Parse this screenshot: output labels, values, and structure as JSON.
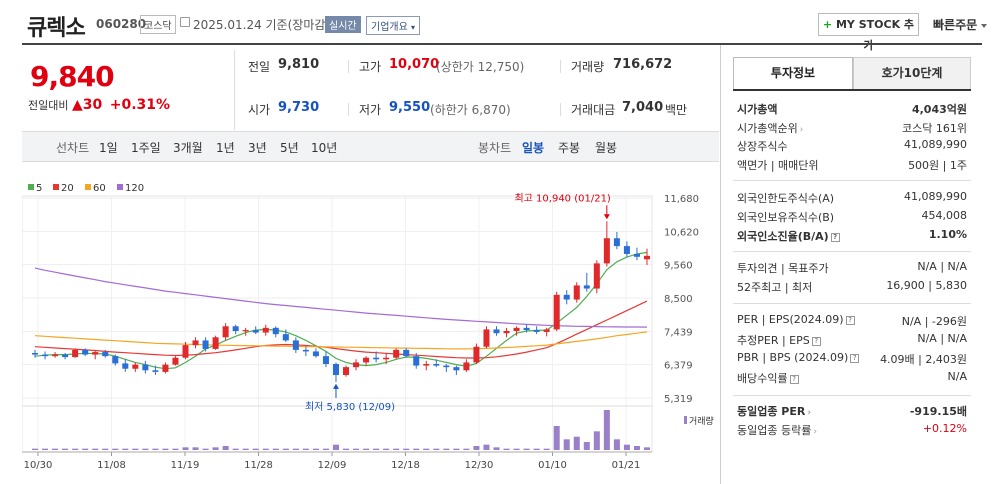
{
  "header": {
    "name": "큐렉소",
    "code": "060280",
    "market": "코스닥",
    "date": "2025.01.24 기준(장마감)",
    "realtime_btn": "실시간",
    "company_info_btn": "기업개요",
    "mystock_plus": "+",
    "mystock_btn": "MY STOCK 추가",
    "quick_order": "빠른주문"
  },
  "price": {
    "current": "9,840",
    "change_label": "전일대비",
    "change_arrow": "▲",
    "change_value": "30",
    "change_pct": "+0.31%"
  },
  "stats": {
    "prev_close_label": "전일",
    "prev_close": "9,810",
    "high_label": "고가",
    "high": "10,070",
    "upper_limit": "(상한가 12,750)",
    "volume_label": "거래량",
    "volume": "716,672",
    "open_label": "시가",
    "open": "9,730",
    "low_label": "저가",
    "low": "9,550",
    "lower_limit": "(하한가 6,870)",
    "amount_label": "거래대금",
    "amount": "7,040",
    "amount_unit": "백만"
  },
  "tabs": {
    "line_label": "선차트",
    "line_items": [
      "1일",
      "1주일",
      "3개월",
      "1년",
      "3년",
      "5년",
      "10년"
    ],
    "candle_label": "봉차트",
    "candle_items": [
      "일봉",
      "주봉",
      "월봉"
    ],
    "active_candle": "일봉"
  },
  "chart_data": {
    "type": "candlestick",
    "legend": [
      {
        "name": "5",
        "color": "#4caf50"
      },
      {
        "name": "20",
        "color": "#e53935"
      },
      {
        "name": "60",
        "color": "#f5a623"
      },
      {
        "name": "120",
        "color": "#a36bd6"
      }
    ],
    "y_ticks": [
      "11,680",
      "10,620",
      "9,560",
      "8,500",
      "7,439",
      "6,379",
      "5,319"
    ],
    "x_ticks": [
      "10/30",
      "11/08",
      "11/19",
      "11/28",
      "12/09",
      "12/18",
      "12/30",
      "01/10",
      "01/21"
    ],
    "volume_label": "거래량",
    "high_annotation": "최고 10,940 (01/21)",
    "low_annotation": "최저 5,830 (12/09)",
    "candles": [
      [
        6750,
        6850,
        6600,
        6700
      ],
      [
        6700,
        6800,
        6550,
        6650
      ],
      [
        6650,
        6780,
        6600,
        6700
      ],
      [
        6700,
        6750,
        6550,
        6620
      ],
      [
        6620,
        6900,
        6600,
        6850
      ],
      [
        6850,
        6900,
        6650,
        6700
      ],
      [
        6700,
        6820,
        6550,
        6780
      ],
      [
        6780,
        6850,
        6600,
        6650
      ],
      [
        6650,
        6700,
        6350,
        6420
      ],
      [
        6420,
        6550,
        6150,
        6250
      ],
      [
        6250,
        6450,
        6150,
        6380
      ],
      [
        6380,
        6500,
        6100,
        6200
      ],
      [
        6200,
        6350,
        6050,
        6150
      ],
      [
        6150,
        6450,
        6100,
        6380
      ],
      [
        6380,
        6650,
        6350,
        6600
      ],
      [
        6600,
        7100,
        6550,
        7000
      ],
      [
        7000,
        7250,
        6900,
        7150
      ],
      [
        7150,
        7250,
        6800,
        6880
      ],
      [
        6880,
        7300,
        6850,
        7250
      ],
      [
        7250,
        7700,
        7150,
        7600
      ],
      [
        7600,
        7650,
        7350,
        7450
      ],
      [
        7450,
        7550,
        7300,
        7480
      ],
      [
        7480,
        7600,
        7350,
        7400
      ],
      [
        7400,
        7650,
        7300,
        7550
      ],
      [
        7550,
        7600,
        7250,
        7350
      ],
      [
        7350,
        7500,
        7100,
        7150
      ],
      [
        7150,
        7250,
        6750,
        6850
      ],
      [
        6850,
        6950,
        6650,
        6800
      ],
      [
        6800,
        6900,
        6600,
        6650
      ],
      [
        6650,
        6800,
        6300,
        6400
      ],
      [
        6400,
        6450,
        5830,
        6050
      ],
      [
        6050,
        6350,
        6000,
        6300
      ],
      [
        6300,
        6550,
        6200,
        6450
      ],
      [
        6450,
        6650,
        6350,
        6600
      ],
      [
        6600,
        6800,
        6450,
        6550
      ],
      [
        6550,
        6750,
        6400,
        6600
      ],
      [
        6600,
        6900,
        6550,
        6850
      ],
      [
        6850,
        6900,
        6600,
        6650
      ],
      [
        6650,
        6750,
        6250,
        6350
      ],
      [
        6350,
        6500,
        6200,
        6400
      ],
      [
        6400,
        6550,
        6300,
        6350
      ],
      [
        6350,
        6400,
        6150,
        6300
      ],
      [
        6300,
        6350,
        6050,
        6200
      ],
      [
        6200,
        6550,
        6150,
        6450
      ],
      [
        6450,
        7050,
        6400,
        6950
      ],
      [
        6950,
        7600,
        6900,
        7500
      ],
      [
        7500,
        7600,
        7300,
        7380
      ],
      [
        7380,
        7550,
        7250,
        7450
      ],
      [
        7450,
        7600,
        7300,
        7550
      ],
      [
        7550,
        7650,
        7400,
        7480
      ],
      [
        7480,
        7600,
        7350,
        7420
      ],
      [
        7420,
        7550,
        7280,
        7500
      ],
      [
        7500,
        8700,
        7450,
        8600
      ],
      [
        8600,
        8750,
        8300,
        8450
      ],
      [
        8450,
        9000,
        8350,
        8900
      ],
      [
        8900,
        9300,
        8700,
        8800
      ],
      [
        8800,
        9700,
        8650,
        9600
      ],
      [
        9600,
        10940,
        9500,
        10400
      ],
      [
        10400,
        10600,
        10050,
        10150
      ],
      [
        10150,
        10300,
        9800,
        9900
      ],
      [
        9900,
        10100,
        9700,
        9810
      ],
      [
        9730,
        10070,
        9550,
        9840
      ]
    ],
    "volumes": [
      1,
      1,
      1,
      1,
      1,
      1,
      1,
      1,
      1,
      1,
      1,
      1,
      1,
      1,
      1,
      2,
      2,
      1,
      2,
      3,
      1,
      1,
      1,
      1,
      1,
      1,
      1,
      1,
      1,
      1,
      4,
      1,
      1,
      1,
      1,
      1,
      1,
      1,
      1,
      1,
      1,
      1,
      1,
      1,
      3,
      4,
      2,
      1,
      1,
      1,
      1,
      1,
      18,
      8,
      10,
      6,
      14,
      30,
      8,
      4,
      3,
      2
    ],
    "ma5": [
      6650,
      6680,
      6700,
      6700,
      6720,
      6740,
      6730,
      6720,
      6650,
      6550,
      6450,
      6380,
      6300,
      6250,
      6280,
      6450,
      6650,
      6880,
      7000,
      7150,
      7280,
      7400,
      7480,
      7500,
      7480,
      7420,
      7300,
      7150,
      6980,
      6800,
      6580,
      6450,
      6380,
      6350,
      6380,
      6450,
      6550,
      6620,
      6620,
      6580,
      6520,
      6450,
      6380,
      6330,
      6420,
      6650,
      6900,
      7150,
      7380,
      7450,
      7470,
      7480,
      7700,
      7950,
      8200,
      8550,
      8950,
      9400,
      9650,
      9800,
      9900,
      9950
    ],
    "ma20": [
      6950,
      6930,
      6910,
      6890,
      6870,
      6850,
      6830,
      6800,
      6780,
      6760,
      6740,
      6720,
      6700,
      6680,
      6670,
      6680,
      6700,
      6730,
      6760,
      6800,
      6850,
      6900,
      6950,
      6990,
      7010,
      7020,
      7010,
      6990,
      6960,
      6930,
      6890,
      6850,
      6810,
      6780,
      6760,
      6740,
      6720,
      6700,
      6680,
      6660,
      6640,
      6620,
      6600,
      6590,
      6590,
      6600,
      6630,
      6670,
      6720,
      6780,
      6850,
      6920,
      7050,
      7200,
      7350,
      7500,
      7650,
      7800,
      7950,
      8100,
      8250,
      8400
    ],
    "ma60": [
      7300,
      7280,
      7260,
      7240,
      7220,
      7200,
      7180,
      7160,
      7140,
      7120,
      7100,
      7080,
      7060,
      7050,
      7040,
      7030,
      7020,
      7010,
      7000,
      6995,
      6990,
      6985,
      6980,
      6975,
      6970,
      6965,
      6960,
      6955,
      6950,
      6945,
      6940,
      6935,
      6930,
      6925,
      6920,
      6915,
      6910,
      6905,
      6900,
      6895,
      6890,
      6885,
      6880,
      6880,
      6885,
      6895,
      6910,
      6925,
      6940,
      6960,
      6980,
      7000,
      7040,
      7080,
      7120,
      7160,
      7200,
      7250,
      7300,
      7340,
      7380,
      7420
    ],
    "ma120": [
      9450,
      9380,
      9320,
      9260,
      9200,
      9140,
      9080,
      9020,
      8970,
      8920,
      8870,
      8820,
      8770,
      8720,
      8680,
      8640,
      8600,
      8560,
      8520,
      8480,
      8440,
      8400,
      8360,
      8320,
      8290,
      8260,
      8230,
      8200,
      8170,
      8140,
      8110,
      8080,
      8050,
      8020,
      7995,
      7970,
      7945,
      7920,
      7895,
      7870,
      7845,
      7820,
      7800,
      7780,
      7760,
      7740,
      7720,
      7700,
      7680,
      7660,
      7645,
      7630,
      7620,
      7610,
      7600,
      7595,
      7590,
      7585,
      7580,
      7578,
      7576,
      7575
    ],
    "ylim": [
      5319,
      11680
    ]
  },
  "sidepanel": {
    "tab_info": "투자정보",
    "tab_orderbook": "호가10단계",
    "market_cap_label": "시가총액",
    "market_cap": "4,043억원",
    "market_cap_rank_label": "시가총액순위",
    "market_cap_rank": "코스닥 161위",
    "shares_label": "상장주식수",
    "shares": "41,089,990",
    "face_label": "액면가 | 매매단위",
    "face": "500원 | 1주",
    "foreign_limit_label": "외국인한도주식수(A)",
    "foreign_limit": "41,089,990",
    "foreign_hold_label": "외국인보유주식수(B)",
    "foreign_hold": "454,008",
    "foreign_ratio_label": "외국인소진율(B/A)",
    "foreign_ratio": "1.10%",
    "opinion_label": "투자의견 | 목표주가",
    "opinion": "N/A | N/A",
    "week52_label": "52주최고 | 최저",
    "week52": "16,900 | 5,830",
    "per_label": "PER | EPS(2024.09)",
    "per": "N/A | -296원",
    "est_per_label": "추정PER | EPS",
    "est_per": "N/A | N/A",
    "pbr_label": "PBR | BPS (2024.09)",
    "pbr": "4.09배 | 2,403원",
    "div_label": "배당수익률",
    "div": "N/A",
    "ind_per_label": "동일업종 PER",
    "ind_per": "-919.15배",
    "ind_rate_label": "동일업종 등락률",
    "ind_rate": "+0.12%"
  }
}
